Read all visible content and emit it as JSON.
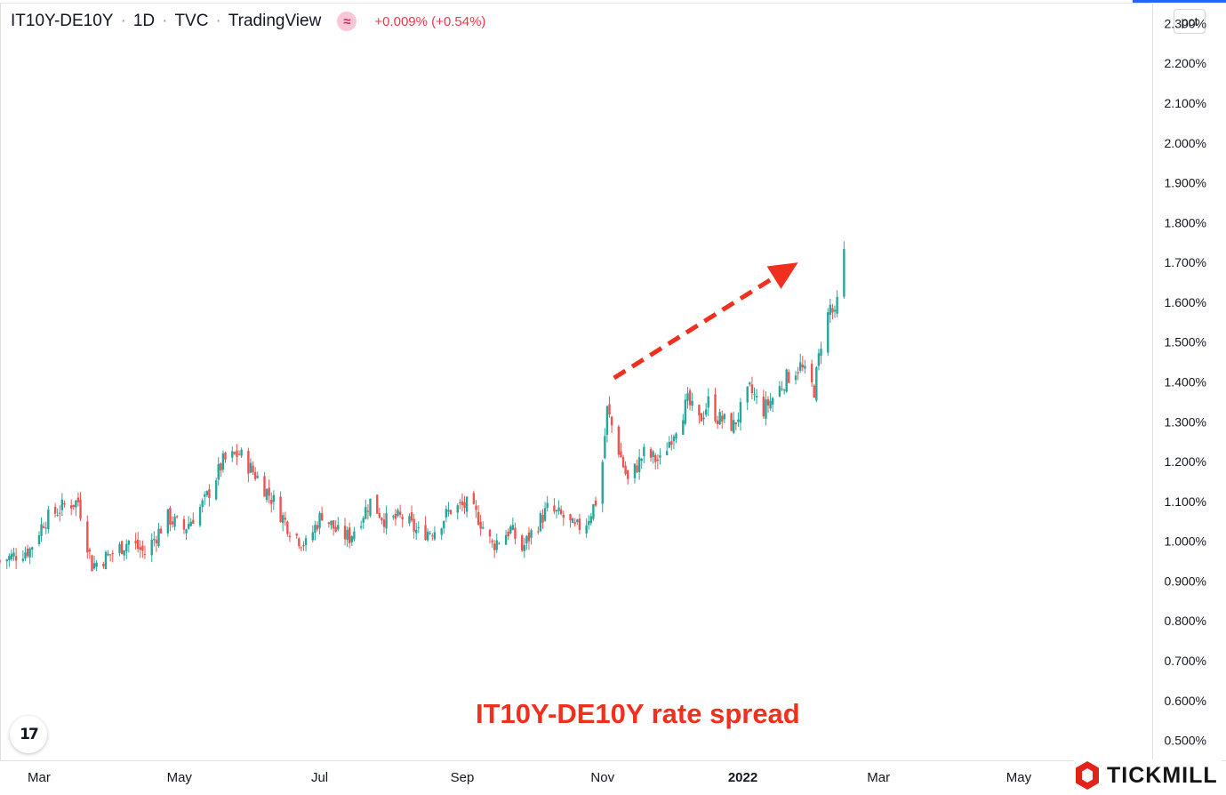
{
  "header": {
    "symbol": "IT10Y-DE10Y",
    "interval": "1D",
    "exchange": "TVC",
    "source": "TradingView",
    "indicator_icon": "wave-icon",
    "change": "+0.009% (+0.54%)"
  },
  "unit_label": "pct",
  "annotation": "IT10Y-DE10Y rate spread",
  "broker_logo": {
    "text": "TICKMILL",
    "color": "#e2231a"
  },
  "colors": {
    "up": "#26a69a",
    "down": "#ef5350",
    "arrow": "#f0301e",
    "accent": "#2962ff"
  },
  "tv_logo_icon": "tradingview-logo-icon",
  "chart_data": {
    "type": "candlestick",
    "title": "",
    "y_unit": "%",
    "ylim": [
      0.45,
      2.35
    ],
    "y_ticks": [
      "2.300%",
      "2.200%",
      "2.100%",
      "2.000%",
      "1.900%",
      "1.800%",
      "1.700%",
      "1.600%",
      "1.500%",
      "1.400%",
      "1.300%",
      "1.200%",
      "1.100%",
      "1.000%",
      "0.900%",
      "0.800%",
      "0.700%",
      "0.600%",
      "0.500%"
    ],
    "x_ticks": [
      {
        "label": "Mar",
        "date": "2021-03-01",
        "bold": false
      },
      {
        "label": "May",
        "date": "2021-05-01",
        "bold": false
      },
      {
        "label": "Jul",
        "date": "2021-07-01",
        "bold": false
      },
      {
        "label": "Sep",
        "date": "2021-09-01",
        "bold": false
      },
      {
        "label": "Nov",
        "date": "2021-11-01",
        "bold": false
      },
      {
        "label": "2022",
        "date": "2022-01-01",
        "bold": true
      },
      {
        "label": "Mar",
        "date": "2022-03-01",
        "bold": false
      },
      {
        "label": "May",
        "date": "2022-05-01",
        "bold": false
      }
    ],
    "x_range": [
      "2021-02-12",
      "2022-06-28"
    ],
    "grid": false,
    "arrow": {
      "from": [
        "2021-11-06",
        1.41
      ],
      "to": [
        "2022-01-25",
        1.7
      ]
    },
    "series": [
      {
        "name": "",
        "close_path": [
          [
            "2021-02-12",
            0.95
          ],
          [
            "2021-02-25",
            0.98
          ],
          [
            "2021-03-03",
            1.05
          ],
          [
            "2021-03-12",
            1.09
          ],
          [
            "2021-03-18",
            1.1
          ],
          [
            "2021-03-24",
            0.94
          ],
          [
            "2021-04-02",
            0.97
          ],
          [
            "2021-04-09",
            1.0
          ],
          [
            "2021-04-16",
            0.97
          ],
          [
            "2021-04-26",
            1.06
          ],
          [
            "2021-05-03",
            1.03
          ],
          [
            "2021-05-12",
            1.1
          ],
          [
            "2021-05-20",
            1.2
          ],
          [
            "2021-05-27",
            1.22
          ],
          [
            "2021-06-04",
            1.16
          ],
          [
            "2021-06-11",
            1.1
          ],
          [
            "2021-06-18",
            1.03
          ],
          [
            "2021-06-25",
            0.99
          ],
          [
            "2021-07-02",
            1.07
          ],
          [
            "2021-07-09",
            1.02
          ],
          [
            "2021-07-14",
            1.01
          ],
          [
            "2021-07-23",
            1.1
          ],
          [
            "2021-07-30",
            1.05
          ],
          [
            "2021-08-06",
            1.06
          ],
          [
            "2021-08-13",
            1.02
          ],
          [
            "2021-08-20",
            1.03
          ],
          [
            "2021-08-27",
            1.08
          ],
          [
            "2021-09-03",
            1.09
          ],
          [
            "2021-09-08",
            1.06
          ],
          [
            "2021-09-14",
            0.99
          ],
          [
            "2021-09-22",
            1.03
          ],
          [
            "2021-09-27",
            0.98
          ],
          [
            "2021-10-01",
            1.02
          ],
          [
            "2021-10-08",
            1.08
          ],
          [
            "2021-10-15",
            1.06
          ],
          [
            "2021-10-20",
            1.03
          ],
          [
            "2021-10-25",
            1.05
          ],
          [
            "2021-10-29",
            1.1
          ],
          [
            "2021-11-01",
            1.2
          ],
          [
            "2021-11-03",
            1.33
          ],
          [
            "2021-11-08",
            1.23
          ],
          [
            "2021-11-12",
            1.15
          ],
          [
            "2021-11-19",
            1.22
          ],
          [
            "2021-11-26",
            1.2
          ],
          [
            "2021-12-03",
            1.29
          ],
          [
            "2021-12-08",
            1.35
          ],
          [
            "2021-12-13",
            1.3
          ],
          [
            "2021-12-17",
            1.35
          ],
          [
            "2021-12-21",
            1.31
          ],
          [
            "2021-12-28",
            1.29
          ],
          [
            "2022-01-04",
            1.38
          ],
          [
            "2022-01-10",
            1.33
          ],
          [
            "2022-01-14",
            1.36
          ],
          [
            "2022-01-20",
            1.41
          ],
          [
            "2022-01-26",
            1.44
          ],
          [
            "2022-02-01",
            1.38
          ],
          [
            "2022-02-04",
            1.5
          ],
          [
            "2022-02-08",
            1.59
          ],
          [
            "2022-02-10",
            1.56
          ],
          [
            "2022-02-14",
            1.72
          ]
        ]
      }
    ]
  }
}
